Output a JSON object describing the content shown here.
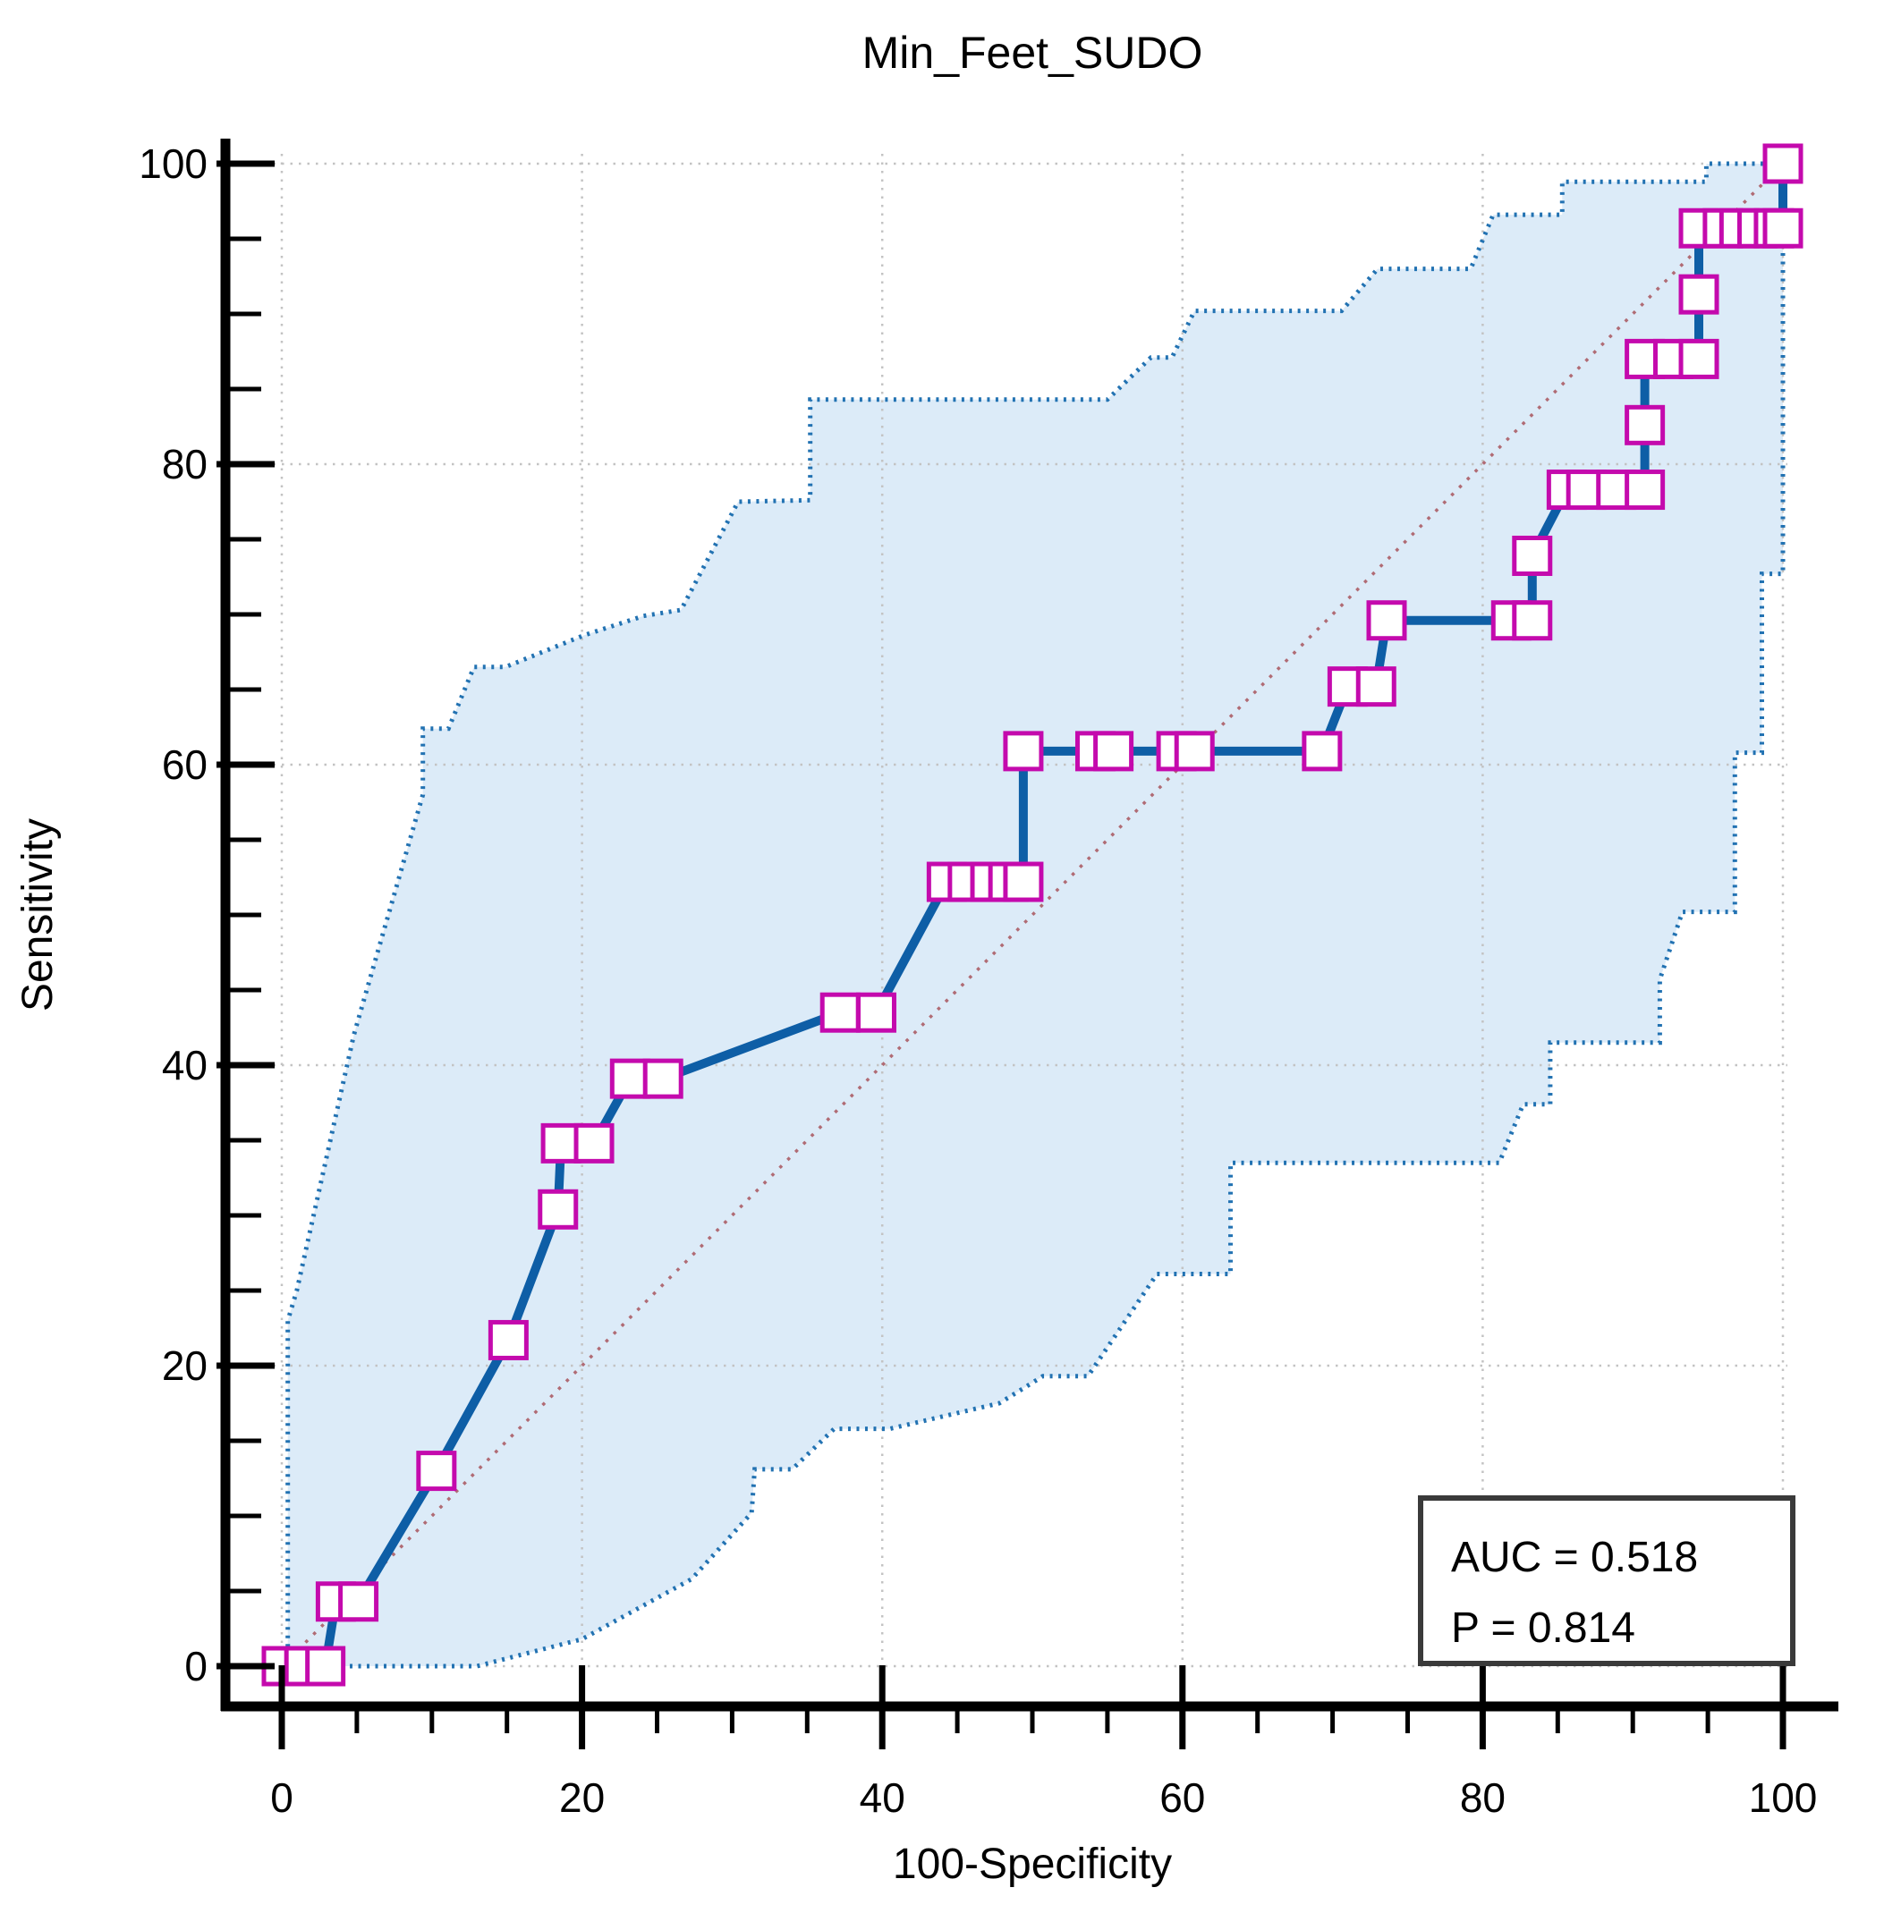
{
  "title": "Min_Feet_SUDO",
  "axes": {
    "x_label": "100-Specificity",
    "y_label": "Sensitivity"
  },
  "annotation": {
    "auc_label": "AUC = 0.518",
    "p_label": "P = 0.814"
  },
  "colors": {
    "roc_line": "#0e5ea6",
    "marker_stroke": "#c40aad",
    "marker_fill": "#ffffff",
    "band_fill": "#dcebf8",
    "band_border": "#2272b2",
    "diagonal": "#b06b74",
    "grid": "#c3c3c3",
    "axis": "#000000",
    "annotation_border": "#3a3a3a"
  },
  "chart_data": {
    "type": "line",
    "title": "Min_Feet_SUDO",
    "xlabel": "100-Specificity",
    "ylabel": "Sensitivity",
    "xlim": [
      0,
      100
    ],
    "ylim": [
      0,
      100
    ],
    "x_major_ticks": [
      0,
      20,
      40,
      60,
      80,
      100
    ],
    "y_major_ticks": [
      0,
      20,
      40,
      60,
      80,
      100
    ],
    "minor_tick_step": 5,
    "grid": true,
    "legend": "none",
    "auc": 0.518,
    "p_value": 0.814,
    "series": [
      {
        "name": "ROC curve",
        "role": "roc",
        "marker": "open-square",
        "points": [
          [
            0,
            0
          ],
          [
            1.5,
            0
          ],
          [
            2.9,
            0
          ],
          [
            3.6,
            4.3
          ],
          [
            5.1,
            4.3
          ],
          [
            10.3,
            13
          ],
          [
            15.1,
            21.7
          ],
          [
            18.4,
            30.4
          ],
          [
            18.6,
            34.8
          ],
          [
            20.8,
            34.8
          ],
          [
            23.2,
            39.1
          ],
          [
            25.4,
            39.1
          ],
          [
            37.2,
            43.5
          ],
          [
            39.6,
            43.5
          ],
          [
            44.3,
            52.2
          ],
          [
            45.7,
            52.2
          ],
          [
            47.2,
            52.2
          ],
          [
            48.4,
            52.2
          ],
          [
            49.4,
            52.2
          ],
          [
            49.4,
            60.9
          ],
          [
            54.2,
            60.9
          ],
          [
            55.4,
            60.9
          ],
          [
            59.6,
            60.9
          ],
          [
            60.8,
            60.9
          ],
          [
            69.3,
            60.9
          ],
          [
            71,
            65.2
          ],
          [
            72.9,
            65.2
          ],
          [
            73.6,
            69.6
          ],
          [
            81.9,
            69.6
          ],
          [
            83.3,
            69.6
          ],
          [
            83.3,
            73.9
          ],
          [
            85.6,
            78.3
          ],
          [
            86.9,
            78.3
          ],
          [
            88.9,
            78.3
          ],
          [
            90.8,
            78.3
          ],
          [
            90.8,
            82.6
          ],
          [
            90.8,
            87
          ],
          [
            92.7,
            87
          ],
          [
            94.4,
            87
          ],
          [
            94.4,
            91.3
          ],
          [
            94.4,
            95.7
          ],
          [
            96,
            95.7
          ],
          [
            97.1,
            95.7
          ],
          [
            98.3,
            95.7
          ],
          [
            99.4,
            95.7
          ],
          [
            100,
            95.7
          ],
          [
            100,
            100
          ]
        ]
      },
      {
        "name": "95% CI upper bound",
        "role": "ci_upper",
        "points": [
          [
            0,
            0
          ],
          [
            0.4,
            0
          ],
          [
            0.4,
            23
          ],
          [
            1,
            25
          ],
          [
            4.8,
            42
          ],
          [
            9.4,
            58
          ],
          [
            9.4,
            62.4
          ],
          [
            11.1,
            62.4
          ],
          [
            12.8,
            66.5
          ],
          [
            14.9,
            66.5
          ],
          [
            20.1,
            68.6
          ],
          [
            24.1,
            69.9
          ],
          [
            26.6,
            70.3
          ],
          [
            30.4,
            77.5
          ],
          [
            35.2,
            77.6
          ],
          [
            35.2,
            84.3
          ],
          [
            55,
            84.3
          ],
          [
            57.9,
            87.1
          ],
          [
            59.3,
            87.1
          ],
          [
            60.8,
            90.2
          ],
          [
            70.6,
            90.2
          ],
          [
            73,
            93
          ],
          [
            79.2,
            93
          ],
          [
            80.7,
            96.6
          ],
          [
            85.3,
            96.6
          ],
          [
            85.3,
            98.8
          ],
          [
            94.9,
            98.8
          ],
          [
            94.9,
            100
          ],
          [
            100,
            100
          ]
        ]
      },
      {
        "name": "95% CI lower bound",
        "role": "ci_lower",
        "points": [
          [
            0,
            0
          ],
          [
            13,
            0
          ],
          [
            20,
            1.8
          ],
          [
            27.3,
            5.8
          ],
          [
            31.3,
            10.2
          ],
          [
            31.5,
            13.1
          ],
          [
            34,
            13.1
          ],
          [
            36.8,
            15.8
          ],
          [
            40.5,
            15.8
          ],
          [
            47.8,
            17.5
          ],
          [
            50.7,
            19.3
          ],
          [
            53.7,
            19.3
          ],
          [
            58.3,
            26.1
          ],
          [
            63.2,
            26.1
          ],
          [
            63.2,
            33.5
          ],
          [
            81.1,
            33.5
          ],
          [
            82.7,
            37.4
          ],
          [
            84.5,
            37.4
          ],
          [
            84.5,
            41.5
          ],
          [
            91.8,
            41.5
          ],
          [
            91.8,
            45.7
          ],
          [
            93.3,
            50.2
          ],
          [
            96.8,
            50.2
          ],
          [
            96.8,
            60.8
          ],
          [
            98.6,
            60.8
          ],
          [
            98.6,
            72.7
          ],
          [
            100,
            72.7
          ],
          [
            100,
            100
          ]
        ]
      },
      {
        "name": "Reference diagonal",
        "role": "diagonal",
        "points": [
          [
            0,
            0
          ],
          [
            100,
            100
          ]
        ]
      }
    ]
  }
}
